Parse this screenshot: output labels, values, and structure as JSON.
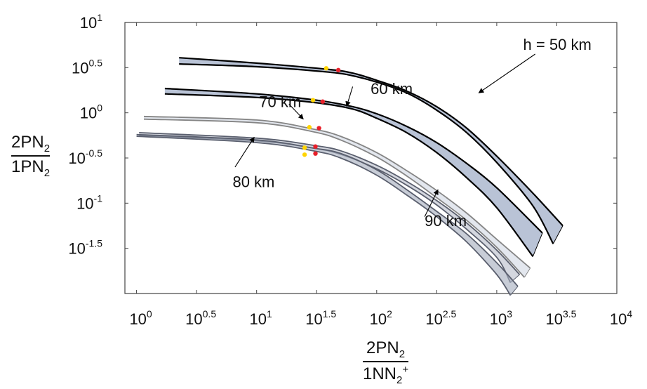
{
  "chart_data": {
    "type": "line",
    "title": "",
    "xscale": "log",
    "yscale": "log",
    "xlim": [
      0.8,
      10000
    ],
    "ylim": [
      0.01,
      10
    ],
    "x_ticks": [
      {
        "value": 1,
        "base": "10",
        "exp": "0"
      },
      {
        "value": 3.1623,
        "base": "10",
        "exp": "0.5"
      },
      {
        "value": 10,
        "base": "10",
        "exp": "1"
      },
      {
        "value": 31.623,
        "base": "10",
        "exp": "1.5"
      },
      {
        "value": 100,
        "base": "10",
        "exp": "2"
      },
      {
        "value": 316.23,
        "base": "10",
        "exp": "2.5"
      },
      {
        "value": 1000,
        "base": "10",
        "exp": "3"
      },
      {
        "value": 3162.3,
        "base": "10",
        "exp": "3.5"
      },
      {
        "value": 10000,
        "base": "10",
        "exp": "4"
      }
    ],
    "y_ticks": [
      {
        "value": 10,
        "base": "10",
        "exp": "1"
      },
      {
        "value": 3.1623,
        "base": "10",
        "exp": "0.5"
      },
      {
        "value": 1,
        "base": "10",
        "exp": "0"
      },
      {
        "value": 0.31623,
        "base": "10",
        "exp": "-0.5"
      },
      {
        "value": 0.1,
        "base": "10",
        "exp": "-1"
      },
      {
        "value": 0.031623,
        "base": "10",
        "exp": "-1.5"
      }
    ],
    "xlabel": {
      "num": "2PN",
      "num_sub": "2",
      "den": "1NN",
      "den_sub": "2",
      "den_sup": "+"
    },
    "ylabel": {
      "num": "2PN",
      "num_sub": "2",
      "den": "1PN",
      "den_sub": "2"
    },
    "grid": false,
    "series": [
      {
        "name": "h = 50 km",
        "color": "#000000",
        "fill": "#b9c3d6",
        "upper": {
          "x": [
            2.26,
            10,
            39.8,
            63.1,
            100,
            178,
            316,
            562,
            1000,
            2000,
            3550
          ],
          "y": [
            4.07,
            3.55,
            3.02,
            2.75,
            2.29,
            1.74,
            1.17,
            0.676,
            0.331,
            0.129,
            0.0562
          ]
        },
        "lower": {
          "x": [
            2.26,
            10,
            39.8,
            63.1,
            100,
            178,
            316,
            562,
            1000,
            2000,
            2950
          ],
          "y": [
            3.47,
            3.24,
            2.82,
            2.57,
            2.19,
            1.66,
            1.07,
            0.603,
            0.282,
            0.0933,
            0.0355
          ]
        }
      },
      {
        "name": "60 km",
        "color": "#000000",
        "fill": "#b9c3d6",
        "upper": {
          "x": [
            1.72,
            10,
            31.6,
            63.1,
            100,
            178,
            316,
            562,
            1000,
            2400
          ],
          "y": [
            1.86,
            1.62,
            1.38,
            1.17,
            0.977,
            0.708,
            0.468,
            0.275,
            0.148,
            0.0467
          ]
        },
        "lower": {
          "x": [
            1.72,
            10,
            31.6,
            63.1,
            100,
            178,
            316,
            562,
            1000,
            2000
          ],
          "y": [
            1.62,
            1.48,
            1.29,
            1.1,
            0.871,
            0.603,
            0.363,
            0.191,
            0.0891,
            0.0257
          ]
        }
      },
      {
        "name": "70 km",
        "color": "#858585",
        "fill": "#d1d7e3",
        "upper": {
          "x": [
            1.15,
            10,
            29.5,
            50,
            100,
            178,
            316,
            562,
            1000,
            1900
          ],
          "y": [
            0.912,
            0.832,
            0.661,
            0.55,
            0.363,
            0.229,
            0.138,
            0.0776,
            0.0398,
            0.0191
          ]
        },
        "lower": {
          "x": [
            1.15,
            10,
            29.5,
            50,
            100,
            178,
            316,
            562,
            1000,
            1700
          ],
          "y": [
            0.851,
            0.776,
            0.617,
            0.501,
            0.324,
            0.2,
            0.115,
            0.0646,
            0.0324,
            0.0151
          ]
        }
      },
      {
        "name": "80 km",
        "color": "#5a5f6e",
        "fill": "#b7bdca",
        "upper": {
          "x": [
            1.05,
            10,
            29.5,
            50,
            100,
            178,
            316,
            562,
            1000,
            1550
          ],
          "y": [
            0.603,
            0.525,
            0.437,
            0.38,
            0.263,
            0.174,
            0.107,
            0.0603,
            0.0302,
            0.0162
          ]
        },
        "lower": {
          "x": [
            1.05,
            10,
            29.5,
            50,
            100,
            178,
            316,
            562,
            1000,
            1300
          ],
          "y": [
            0.562,
            0.49,
            0.407,
            0.348,
            0.24,
            0.158,
            0.0955,
            0.0513,
            0.0251,
            0.0132
          ]
        }
      },
      {
        "name": "90 km",
        "color": "#5a5f6e",
        "fill": "#a4acbc",
        "upper": {
          "x": [
            1.0,
            10,
            29.5,
            50,
            100,
            178,
            316,
            562,
            1000,
            1500
          ],
          "y": [
            0.575,
            0.501,
            0.407,
            0.355,
            0.234,
            0.141,
            0.0812,
            0.0457,
            0.0219,
            0.012
          ]
        },
        "lower": {
          "x": [
            1.0,
            10,
            29.5,
            50,
            100,
            178,
            316,
            562,
            1000,
            1300
          ],
          "y": [
            0.55,
            0.468,
            0.38,
            0.316,
            0.204,
            0.123,
            0.0708,
            0.0372,
            0.0162,
            0.00955
          ]
        }
      }
    ],
    "markers": [
      {
        "x": 38.0,
        "y": 3.11,
        "color": "#ffd400"
      },
      {
        "x": 47.9,
        "y": 2.97,
        "color": "#e8202a"
      },
      {
        "x": 29.5,
        "y": 1.38,
        "color": "#ffd400"
      },
      {
        "x": 35.5,
        "y": 1.33,
        "color": "#e8202a"
      },
      {
        "x": 27.5,
        "y": 0.692,
        "color": "#ffd400"
      },
      {
        "x": 33.1,
        "y": 0.676,
        "color": "#e8202a"
      },
      {
        "x": 25.1,
        "y": 0.411,
        "color": "#ffd400"
      },
      {
        "x": 30.9,
        "y": 0.423,
        "color": "#e8202a"
      },
      {
        "x": 25.1,
        "y": 0.344,
        "color": "#ffd400"
      },
      {
        "x": 30.9,
        "y": 0.354,
        "color": "#e8202a"
      }
    ],
    "annotations": [
      {
        "text": "h = 50 km",
        "text_at": [
          1660,
          5.75
        ],
        "arrow_from": [
          2090,
          4.47
        ],
        "arrow_to": [
          708,
          1.66
        ]
      },
      {
        "text": "60 km",
        "text_at": [
          89,
          1.86
        ],
        "arrow_from": [
          63.1,
          1.95
        ],
        "arrow_to": [
          56.2,
          1.18
        ]
      },
      {
        "text": "70 km",
        "text_at": [
          10.5,
          1.33
        ],
        "arrow_from": [
          18.6,
          1.25
        ],
        "arrow_to": [
          24.5,
          0.851
        ]
      },
      {
        "text": "80 km",
        "text_at": [
          6.31,
          0.174
        ],
        "arrow_from": [
          6.61,
          0.251
        ],
        "arrow_to": [
          9.55,
          0.537
        ]
      },
      {
        "text": "90 km",
        "text_at": [
          251,
          0.0646
        ],
        "arrow_from": [
          251,
          0.0708
        ],
        "arrow_to": [
          324,
          0.141
        ]
      }
    ]
  }
}
